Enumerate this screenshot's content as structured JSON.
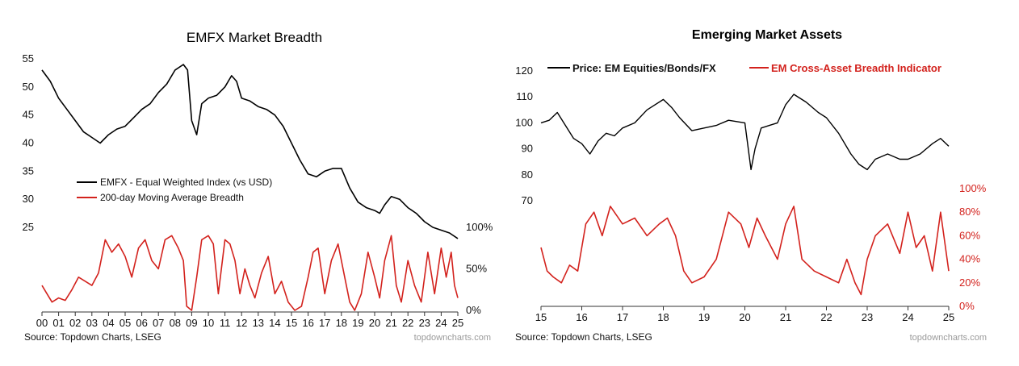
{
  "colors": {
    "black_series": "#000000",
    "red_series": "#d3221d",
    "brand": "#9a9a9a"
  },
  "chart_data": [
    {
      "type": "line",
      "title": "EMFX Market Breadth",
      "source": "Source: Topdown Charts, LSEG",
      "brand": "topdowncharts.com",
      "x_tick_labels": [
        "00",
        "01",
        "02",
        "03",
        "04",
        "05",
        "06",
        "07",
        "08",
        "09",
        "10",
        "11",
        "12",
        "13",
        "14",
        "15",
        "16",
        "17",
        "18",
        "19",
        "20",
        "21",
        "22",
        "23",
        "24",
        "25"
      ],
      "left_axis": {
        "ticks": [
          "25",
          "30",
          "35",
          "40",
          "45",
          "50",
          "55"
        ],
        "range": [
          20,
          55
        ]
      },
      "right_axis": {
        "ticks": [
          "0%",
          "50%",
          "100%"
        ]
      },
      "legend": [
        "EMFX - Equal Weighted Index (vs USD)",
        "200-day Moving Average Breadth"
      ],
      "series": [
        {
          "name": "EMFX - Equal Weighted Index (vs USD)",
          "axis": "left",
          "x": [
            2000.0,
            2000.5,
            2001.0,
            2001.5,
            2002.0,
            2002.5,
            2003.0,
            2003.5,
            2004.0,
            2004.5,
            2005.0,
            2005.5,
            2006.0,
            2006.5,
            2007.0,
            2007.5,
            2008.0,
            2008.5,
            2008.75,
            2009.0,
            2009.3,
            2009.6,
            2010.0,
            2010.5,
            2011.0,
            2011.4,
            2011.7,
            2012.0,
            2012.5,
            2013.0,
            2013.5,
            2014.0,
            2014.5,
            2015.0,
            2015.5,
            2016.0,
            2016.5,
            2017.0,
            2017.5,
            2018.0,
            2018.5,
            2019.0,
            2019.5,
            2020.0,
            2020.3,
            2020.6,
            2021.0,
            2021.5,
            2022.0,
            2022.5,
            2023.0,
            2023.5,
            2024.0,
            2024.5,
            2025.0
          ],
          "values": [
            53,
            51,
            48,
            46,
            44,
            42,
            41,
            40,
            41.5,
            42.5,
            43,
            44.5,
            46,
            47,
            49,
            50.5,
            53,
            54,
            53,
            44,
            41.5,
            47,
            48,
            48.5,
            50,
            52,
            51,
            48,
            47.5,
            46.5,
            46,
            45,
            43,
            40,
            37,
            34.5,
            34,
            35,
            35.5,
            35.5,
            32,
            29.5,
            28.5,
            28,
            27.5,
            29,
            30.5,
            30,
            28.5,
            27.5,
            26,
            25,
            24.5,
            24,
            23
          ]
        },
        {
          "name": "200-day Moving Average Breadth",
          "axis": "right",
          "x": [
            2000.0,
            2000.3,
            2000.6,
            2001.0,
            2001.4,
            2001.8,
            2002.2,
            2002.6,
            2003.0,
            2003.4,
            2003.8,
            2004.2,
            2004.6,
            2005.0,
            2005.4,
            2005.8,
            2006.2,
            2006.6,
            2007.0,
            2007.4,
            2007.8,
            2008.2,
            2008.5,
            2008.7,
            2009.0,
            2009.3,
            2009.6,
            2010.0,
            2010.3,
            2010.6,
            2011.0,
            2011.3,
            2011.6,
            2011.9,
            2012.2,
            2012.5,
            2012.8,
            2013.2,
            2013.6,
            2014.0,
            2014.4,
            2014.8,
            2015.2,
            2015.6,
            2016.0,
            2016.3,
            2016.6,
            2017.0,
            2017.4,
            2017.8,
            2018.2,
            2018.5,
            2018.8,
            2019.2,
            2019.6,
            2020.0,
            2020.3,
            2020.6,
            2021.0,
            2021.3,
            2021.6,
            2022.0,
            2022.4,
            2022.8,
            2023.2,
            2023.6,
            2024.0,
            2024.3,
            2024.6,
            2024.8,
            2025.0
          ],
          "values": [
            30,
            20,
            10,
            15,
            12,
            25,
            40,
            35,
            30,
            45,
            85,
            70,
            80,
            65,
            40,
            75,
            85,
            60,
            50,
            85,
            90,
            75,
            60,
            5,
            0,
            40,
            85,
            90,
            80,
            20,
            85,
            80,
            60,
            20,
            50,
            30,
            15,
            45,
            65,
            20,
            35,
            10,
            0,
            5,
            40,
            70,
            75,
            20,
            60,
            80,
            40,
            10,
            0,
            20,
            70,
            40,
            15,
            60,
            90,
            30,
            10,
            60,
            30,
            10,
            70,
            20,
            75,
            40,
            70,
            30,
            15
          ]
        }
      ]
    },
    {
      "type": "line",
      "title": "Emerging Market Assets",
      "source": "Source: Topdown Charts, LSEG",
      "brand": "topdowncharts.com",
      "x_tick_labels": [
        "15",
        "16",
        "17",
        "18",
        "19",
        "20",
        "21",
        "22",
        "23",
        "24",
        "25"
      ],
      "left_axis": {
        "ticks": [
          "70",
          "80",
          "90",
          "100",
          "110",
          "120"
        ],
        "range": [
          70,
          120
        ]
      },
      "right_axis": {
        "ticks": [
          "0%",
          "20%",
          "40%",
          "60%",
          "80%",
          "100%"
        ],
        "range": [
          0,
          100
        ]
      },
      "legend": [
        "Price: EM Equities/Bonds/FX",
        "EM Cross-Asset Breadth Indicator"
      ],
      "series": [
        {
          "name": "Price: EM Equities/Bonds/FX",
          "axis": "left",
          "x": [
            2015.0,
            2015.2,
            2015.4,
            2015.6,
            2015.8,
            2016.0,
            2016.2,
            2016.4,
            2016.6,
            2016.8,
            2017.0,
            2017.3,
            2017.6,
            2018.0,
            2018.2,
            2018.4,
            2018.7,
            2019.0,
            2019.3,
            2019.6,
            2020.0,
            2020.15,
            2020.25,
            2020.4,
            2020.6,
            2020.8,
            2021.0,
            2021.2,
            2021.5,
            2021.8,
            2022.0,
            2022.3,
            2022.6,
            2022.8,
            2023.0,
            2023.2,
            2023.5,
            2023.8,
            2024.0,
            2024.3,
            2024.6,
            2024.8,
            2025.0
          ],
          "values": [
            100,
            101,
            104,
            99,
            94,
            92,
            88,
            93,
            96,
            95,
            98,
            100,
            105,
            109,
            106,
            102,
            97,
            98,
            99,
            101,
            100,
            82,
            90,
            98,
            99,
            100,
            107,
            111,
            108,
            104,
            102,
            96,
            88,
            84,
            82,
            86,
            88,
            86,
            86,
            88,
            92,
            94,
            91
          ]
        },
        {
          "name": "EM Cross-Asset Breadth Indicator",
          "axis": "right",
          "x": [
            2015.0,
            2015.15,
            2015.3,
            2015.5,
            2015.7,
            2015.9,
            2016.1,
            2016.3,
            2016.5,
            2016.7,
            2017.0,
            2017.3,
            2017.6,
            2017.9,
            2018.1,
            2018.3,
            2018.5,
            2018.7,
            2019.0,
            2019.3,
            2019.6,
            2019.9,
            2020.1,
            2020.3,
            2020.5,
            2020.8,
            2021.0,
            2021.2,
            2021.4,
            2021.7,
            2022.0,
            2022.3,
            2022.5,
            2022.7,
            2022.85,
            2023.0,
            2023.2,
            2023.5,
            2023.8,
            2024.0,
            2024.2,
            2024.4,
            2024.6,
            2024.8,
            2025.0
          ],
          "values": [
            50,
            30,
            25,
            20,
            35,
            30,
            70,
            80,
            60,
            85,
            70,
            75,
            60,
            70,
            75,
            60,
            30,
            20,
            25,
            40,
            80,
            70,
            50,
            75,
            60,
            40,
            70,
            85,
            40,
            30,
            25,
            20,
            40,
            20,
            10,
            40,
            60,
            70,
            45,
            80,
            50,
            60,
            30,
            80,
            30
          ]
        }
      ]
    }
  ]
}
